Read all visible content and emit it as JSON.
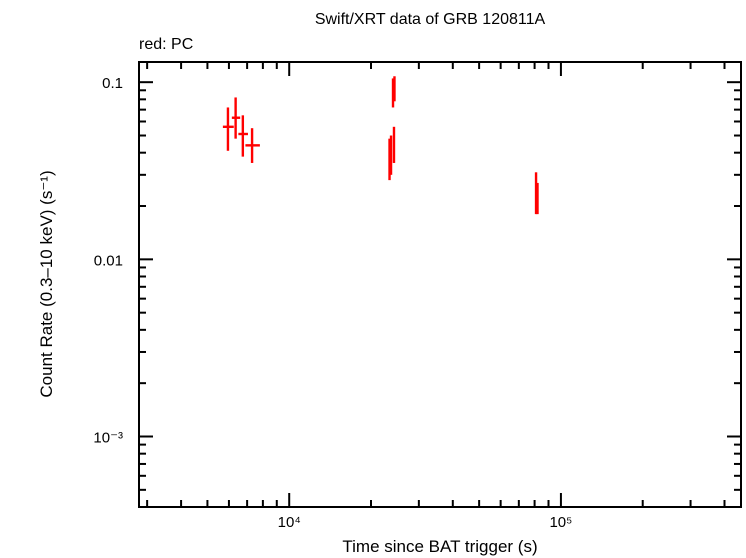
{
  "chart_data": {
    "type": "scatter",
    "title": "Swift/XRT data of GRB 120811A",
    "subtitle": "red: PC",
    "xlabel": "Time since BAT trigger (s)",
    "ylabel": "Count Rate (0.3–10 keV) (s⁻¹)",
    "xscale": "log",
    "yscale": "log",
    "xlim": [
      2800,
      460000
    ],
    "ylim": [
      0.0004,
      0.13
    ],
    "x_ticks": [
      {
        "value": 10000,
        "label": "10⁴"
      },
      {
        "value": 100000,
        "label": "10⁵"
      }
    ],
    "y_ticks": [
      {
        "value": 0.1,
        "label": "0.1"
      },
      {
        "value": 0.01,
        "label": "0.01"
      },
      {
        "value": 0.001,
        "label": "10⁻³"
      }
    ],
    "grid": false,
    "series": [
      {
        "color": "#ff0000",
        "points": [
          {
            "x": 5950,
            "xlo": 5700,
            "xhi": 6250,
            "y": 0.056,
            "ylo": 0.041,
            "yhi": 0.072
          },
          {
            "x": 6350,
            "xlo": 6150,
            "xhi": 6600,
            "y": 0.063,
            "ylo": 0.048,
            "yhi": 0.082
          },
          {
            "x": 6750,
            "xlo": 6500,
            "xhi": 7050,
            "y": 0.051,
            "ylo": 0.038,
            "yhi": 0.065
          },
          {
            "x": 7300,
            "xlo": 6900,
            "xhi": 7800,
            "y": 0.044,
            "ylo": 0.035,
            "yhi": 0.055
          },
          {
            "x": 23400,
            "xlo": 23250,
            "xhi": 23550,
            "y": 0.038,
            "ylo": 0.028,
            "yhi": 0.048
          },
          {
            "x": 23700,
            "xlo": 23550,
            "xhi": 23850,
            "y": 0.04,
            "ylo": 0.03,
            "yhi": 0.05
          },
          {
            "x": 24100,
            "xlo": 23950,
            "xhi": 24250,
            "y": 0.09,
            "ylo": 0.072,
            "yhi": 0.105
          },
          {
            "x": 24400,
            "xlo": 24250,
            "xhi": 24550,
            "y": 0.092,
            "ylo": 0.078,
            "yhi": 0.108
          },
          {
            "x": 24300,
            "xlo": 24150,
            "xhi": 24450,
            "y": 0.045,
            "ylo": 0.035,
            "yhi": 0.056
          },
          {
            "x": 81000,
            "xlo": 80500,
            "xhi": 81500,
            "y": 0.024,
            "ylo": 0.018,
            "yhi": 0.031
          },
          {
            "x": 82000,
            "xlo": 81500,
            "xhi": 82500,
            "y": 0.022,
            "ylo": 0.018,
            "yhi": 0.027
          }
        ]
      }
    ]
  }
}
